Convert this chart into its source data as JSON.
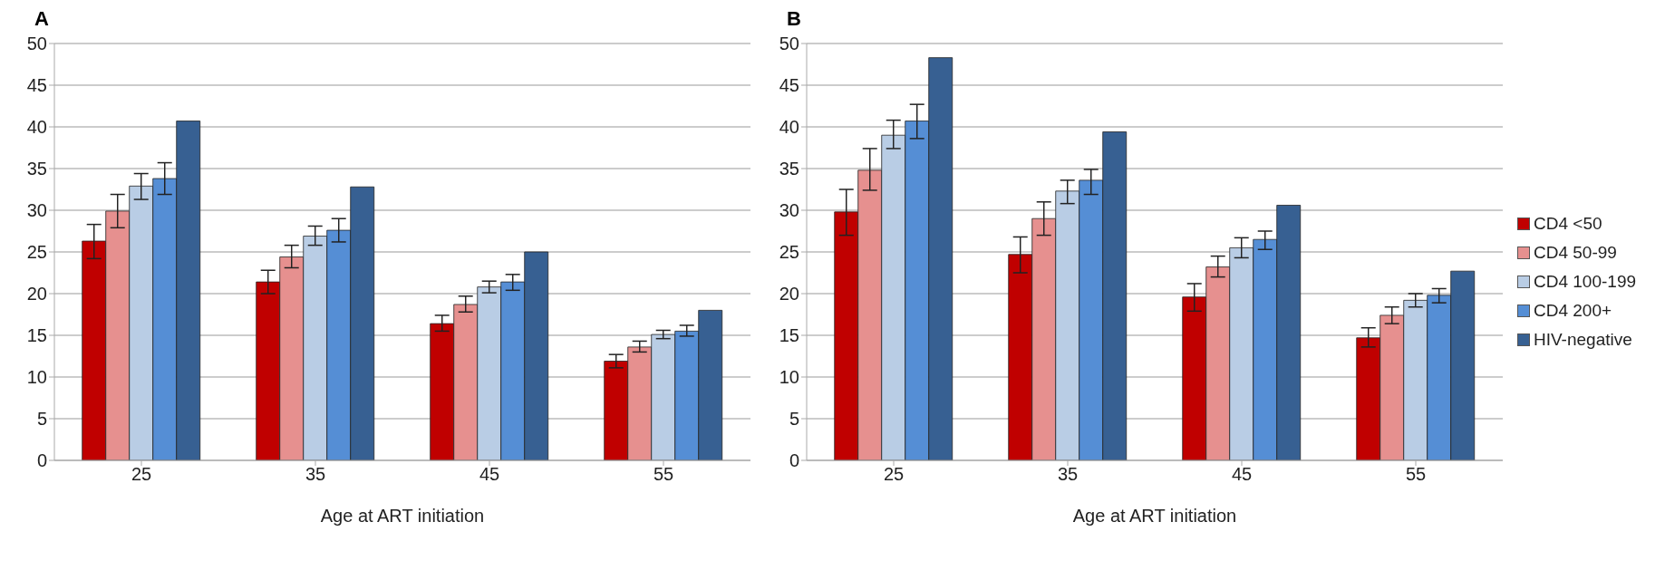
{
  "chart_data": [
    {
      "type": "bar",
      "title": "A",
      "xlabel": "Age at ART initiation",
      "categories": [
        "25",
        "35",
        "45",
        "55"
      ],
      "ylim": [
        0,
        50
      ],
      "yticks": [
        0,
        5,
        10,
        15,
        20,
        25,
        30,
        35,
        40,
        45,
        50
      ],
      "grid": "y",
      "legend": false,
      "series": [
        {
          "color": "#c00000",
          "values": [
            26.3,
            21.4,
            16.4,
            11.9
          ],
          "errors": [
            [
              24.2,
              28.3
            ],
            [
              20.0,
              22.8
            ],
            [
              15.5,
              17.4
            ],
            [
              11.1,
              12.7
            ]
          ]
        },
        {
          "color": "#e6908f",
          "values": [
            29.9,
            24.4,
            18.7,
            13.6
          ],
          "errors": [
            [
              27.9,
              31.9
            ],
            [
              23.1,
              25.8
            ],
            [
              17.8,
              19.7
            ],
            [
              13.0,
              14.3
            ]
          ]
        },
        {
          "color": "#b9cde5",
          "values": [
            32.9,
            26.9,
            20.8,
            15.1
          ],
          "errors": [
            [
              31.3,
              34.4
            ],
            [
              25.8,
              28.1
            ],
            [
              20.1,
              21.5
            ],
            [
              14.6,
              15.6
            ]
          ]
        },
        {
          "color": "#558ed5",
          "values": [
            33.8,
            27.6,
            21.4,
            15.5
          ],
          "errors": [
            [
              31.9,
              35.7
            ],
            [
              26.2,
              29.0
            ],
            [
              20.4,
              22.3
            ],
            [
              14.9,
              16.2
            ]
          ]
        },
        {
          "color": "#376092",
          "values": [
            40.7,
            32.8,
            25.0,
            18.0
          ]
        }
      ]
    },
    {
      "type": "bar",
      "title": "B",
      "xlabel": "Age at ART initiation",
      "categories": [
        "25",
        "35",
        "45",
        "55"
      ],
      "ylim": [
        0,
        50
      ],
      "yticks": [
        0,
        5,
        10,
        15,
        20,
        25,
        30,
        35,
        40,
        45,
        50
      ],
      "grid": "y",
      "legend": "right",
      "series": [
        {
          "name": "CD4 <50",
          "color": "#c00000",
          "values": [
            29.8,
            24.7,
            19.6,
            14.7
          ],
          "errors": [
            [
              27.0,
              32.5
            ],
            [
              22.5,
              26.8
            ],
            [
              17.9,
              21.2
            ],
            [
              13.6,
              15.9
            ]
          ]
        },
        {
          "name": "CD4 50-99",
          "color": "#e6908f",
          "values": [
            34.8,
            29.0,
            23.2,
            17.4
          ],
          "errors": [
            [
              32.4,
              37.4
            ],
            [
              27.0,
              31.0
            ],
            [
              22.0,
              24.5
            ],
            [
              16.4,
              18.4
            ]
          ]
        },
        {
          "name": "CD4 100-199",
          "color": "#b9cde5",
          "values": [
            39.0,
            32.3,
            25.5,
            19.2
          ],
          "errors": [
            [
              37.4,
              40.8
            ],
            [
              30.8,
              33.6
            ],
            [
              24.3,
              26.7
            ],
            [
              18.4,
              20.0
            ]
          ]
        },
        {
          "name": "CD4 200+",
          "color": "#558ed5",
          "values": [
            40.7,
            33.6,
            26.5,
            19.8
          ],
          "errors": [
            [
              38.6,
              42.7
            ],
            [
              31.9,
              34.9
            ],
            [
              25.3,
              27.5
            ],
            [
              18.9,
              20.6
            ]
          ]
        },
        {
          "name": "HIV-negative",
          "color": "#376092",
          "values": [
            48.3,
            39.4,
            30.6,
            22.7
          ]
        }
      ]
    }
  ]
}
